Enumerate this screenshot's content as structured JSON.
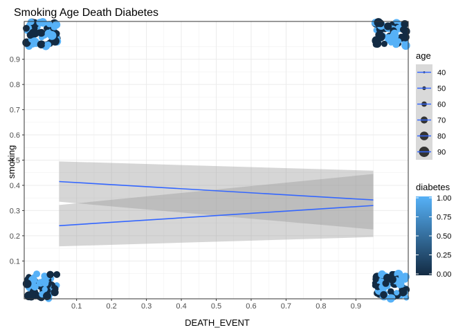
{
  "chart_data": {
    "type": "scatter",
    "title": "Smoking Age Death Diabetes",
    "xlabel": "DEATH_EVENT",
    "ylabel": "smoking",
    "xlim": [
      -0.05,
      1.05
    ],
    "ylim": [
      -0.05,
      1.05
    ],
    "x_ticks": [
      0.1,
      0.2,
      0.3,
      0.4,
      0.5,
      0.6,
      0.7,
      0.8,
      0.9
    ],
    "y_ticks": [
      0.1,
      0.2,
      0.3,
      0.4,
      0.5,
      0.6,
      0.7,
      0.8,
      0.9
    ],
    "grid": true,
    "point_clusters": [
      {
        "x": 0,
        "y": 0,
        "diabetes_mix": [
          0,
          1
        ]
      },
      {
        "x": 0,
        "y": 1,
        "diabetes_mix": [
          0,
          1
        ]
      },
      {
        "x": 1,
        "y": 0,
        "diabetes_mix": [
          0,
          1
        ]
      },
      {
        "x": 1,
        "y": 1,
        "diabetes_mix": [
          0,
          1
        ]
      }
    ],
    "smooth_lines": [
      {
        "x": [
          0.05,
          0.95
        ],
        "y": [
          0.415,
          0.342
        ],
        "ci_lower": [
          0.335,
          0.225
        ],
        "ci_upper": [
          0.495,
          0.458
        ],
        "color": "#3366FF"
      },
      {
        "x": [
          0.05,
          0.95
        ],
        "y": [
          0.24,
          0.32
        ],
        "ci_lower": [
          0.158,
          0.195
        ],
        "ci_upper": [
          0.322,
          0.445
        ],
        "color": "#3366FF"
      }
    ],
    "legend": {
      "placement": "right",
      "size_legend": {
        "title": "age",
        "entries": [
          {
            "label": "40",
            "value": 40
          },
          {
            "label": "50",
            "value": 50
          },
          {
            "label": "60",
            "value": 60
          },
          {
            "label": "70",
            "value": 70
          },
          {
            "label": "80",
            "value": 80
          },
          {
            "label": "90",
            "value": 90
          }
        ]
      },
      "color_legend": {
        "title": "diabetes",
        "labels": [
          "1.00",
          "0.75",
          "0.50",
          "0.25",
          "0.00"
        ],
        "low_color": "#132B43",
        "high_color": "#56B1F7"
      }
    }
  }
}
